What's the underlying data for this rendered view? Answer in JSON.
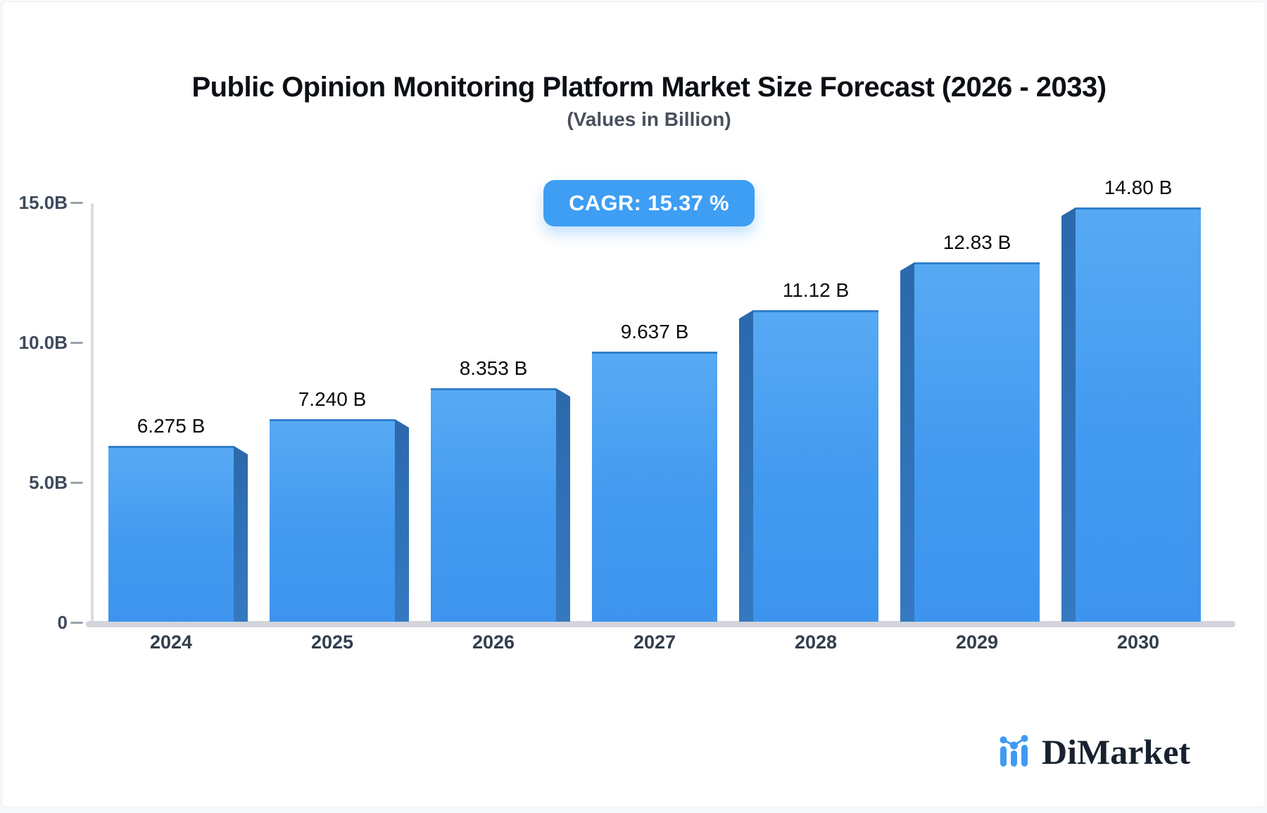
{
  "page": {
    "background": "#f7f8fa",
    "card_background": "#ffffff"
  },
  "header": {
    "title": "Public Opinion Monitoring Platform Market Size Forecast (2026 - 2033)",
    "subtitle": "(Values in Billion)",
    "cagr_badge": "CAGR: 15.37 %"
  },
  "chart_data": {
    "type": "bar",
    "title": "Public Opinion Monitoring Platform Market Size Forecast (2026 - 2033)",
    "subtitle": "(Values in Billion)",
    "cagr_percent": 15.37,
    "categories": [
      "2024",
      "2025",
      "2026",
      "2027",
      "2028",
      "2029",
      "2030"
    ],
    "values": [
      6.275,
      7.24,
      8.353,
      9.637,
      11.12,
      12.83,
      14.8
    ],
    "bar_labels": [
      "6.275 B",
      "7.240 B",
      "8.353 B",
      "9.637 B",
      "11.12 B",
      "12.83 B",
      "14.80 B"
    ],
    "unit": "Billion",
    "xlabel": "",
    "ylabel": "",
    "ylim": [
      0,
      15
    ],
    "y_ticks": [
      {
        "label": "15.0B",
        "value": 15
      },
      {
        "label": "10.0B",
        "value": 10
      },
      {
        "label": "5.0B",
        "value": 5
      },
      {
        "label": "0",
        "value": 0
      }
    ],
    "grid": false,
    "legend": null,
    "colors": {
      "bar_face": "#429af0",
      "bar_face_top_edge": "#2e7fcd",
      "bar_side": "#2f72b7",
      "badge": "#3d9ef4",
      "axis": "#d5d8dd",
      "tick_text": "#3e4a5b",
      "category_text": "#333e4d",
      "value_text": "#0a0b0d"
    }
  },
  "footer": {
    "brand": "DiMarket",
    "brand_color": "#18222f",
    "logo_icon": "bar-line-chart-icon",
    "logo_icon_color": "#3f9bf2"
  }
}
